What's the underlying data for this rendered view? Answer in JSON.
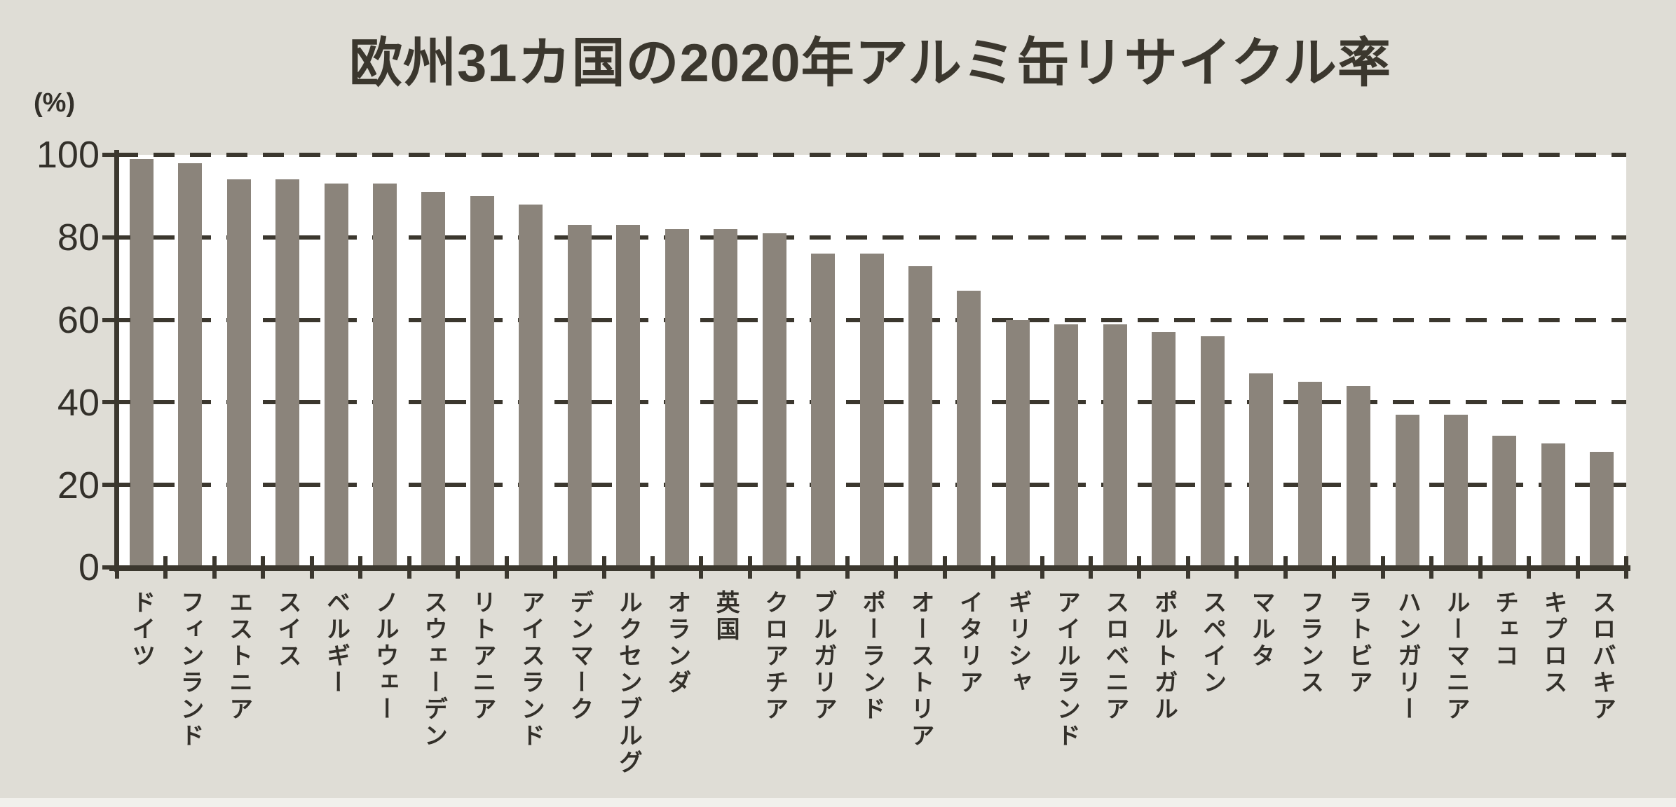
{
  "title": "欧州31カ国の2020年アルミ缶リサイクル率",
  "y_axis": {
    "unit_label": "(%)",
    "tick_labels": [
      "100",
      "80",
      "60",
      "40",
      "20",
      "0"
    ]
  },
  "chart_data": {
    "type": "bar",
    "title": "欧州31カ国の2020年アルミ缶リサイクル率",
    "xlabel": "",
    "ylabel": "(%)",
    "ylim": [
      0,
      100
    ],
    "y_ticks": [
      0,
      20,
      40,
      60,
      80,
      100
    ],
    "grid": "horizontal dashed lines at 20/40/60/80/100, drawn behind bars",
    "legend_position": "none",
    "categories": [
      "ドイツ",
      "フィンランド",
      "エストニア",
      "スイス",
      "ベルギー",
      "ノルウェー",
      "スウェーデン",
      "リトアニア",
      "アイスランド",
      "デンマーク",
      "ルクセンブルグ",
      "オランダ",
      "英国",
      "クロアチア",
      "ブルガリア",
      "ポーランド",
      "オーストリア",
      "イタリア",
      "ギリシャ",
      "アイルランド",
      "スロベニア",
      "ポルトガル",
      "スペイン",
      "マルタ",
      "フランス",
      "ラトビア",
      "ハンガリー",
      "ルーマニア",
      "チェコ",
      "キプロス",
      "スロバキア"
    ],
    "values": [
      99,
      98,
      94,
      94,
      93,
      93,
      91,
      90,
      88,
      83,
      83,
      82,
      82,
      81,
      76,
      76,
      73,
      67,
      60,
      59,
      59,
      57,
      56,
      47,
      45,
      44,
      37,
      37,
      32,
      30,
      28
    ]
  },
  "colors": {
    "background": "#dfddd6",
    "plot_background": "#ffffff",
    "bar": "#8b847b",
    "axis_and_grid": "#3b372e",
    "text": "#33302a",
    "bottom_strip": "#f1f0ec"
  }
}
